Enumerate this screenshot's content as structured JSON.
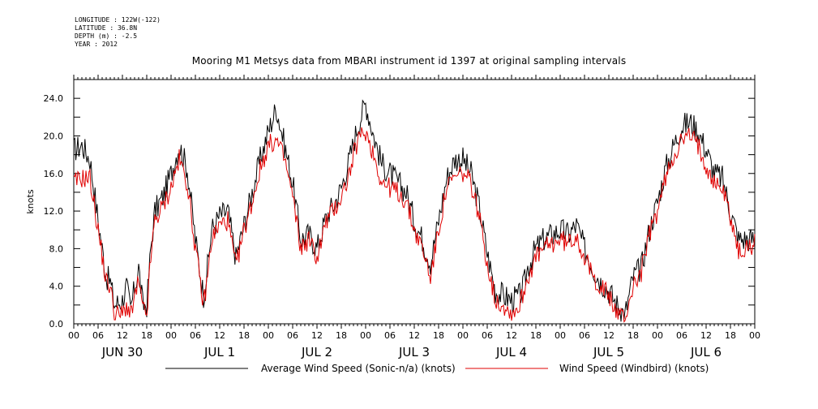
{
  "metadata": [
    "LONGITUDE : 122W(-122)",
    "LATITUDE : 36.8N",
    "DEPTH (m) : -2.5",
    "YEAR : 2012"
  ],
  "title": "Mooring M1 Metsys data from MBARI instrument id 1397 at original sampling intervals",
  "colors": {
    "series1": "#000000",
    "series2": "#e00000"
  },
  "chart_data": {
    "type": "line",
    "title": "Mooring M1 Metsys data from MBARI instrument id 1397 at original sampling intervals",
    "xlabel": "",
    "ylabel": "knots",
    "ylim": [
      0,
      26
    ],
    "y_ticks": [
      "0.0",
      "4.0",
      "8.0",
      "12.0",
      "16.0",
      "20.0",
      "24.0"
    ],
    "x_hour_ticks": [
      "00",
      "06",
      "12",
      "18",
      "00",
      "06",
      "12",
      "18",
      "00",
      "06",
      "12",
      "18",
      "00",
      "06",
      "12",
      "18",
      "00",
      "06",
      "12",
      "18",
      "00",
      "06",
      "12",
      "18",
      "00",
      "06",
      "12",
      "18",
      "00"
    ],
    "day_labels": [
      "JUN 30",
      "JUL  1",
      "JUL  2",
      "JUL  3",
      "JUL  4",
      "JUL  5",
      "JUL  6"
    ],
    "x_unit": "hours from 2012-06-30 00:00",
    "xlim": [
      0,
      168
    ],
    "legend_placement": "bottom",
    "series": [
      {
        "name": "Average Wind Speed (Sonic-n/a) (knots)",
        "color": "#000000",
        "x": [
          0,
          2,
          4,
          6,
          8,
          9,
          10,
          12,
          13,
          14,
          16,
          17,
          18,
          19,
          20,
          22,
          24,
          26,
          28,
          30,
          32,
          33,
          34,
          36,
          38,
          40,
          42,
          44,
          46,
          48,
          50,
          52,
          54,
          56,
          58,
          60,
          62,
          63,
          64,
          66,
          68,
          70,
          72,
          74,
          76,
          78,
          80,
          82,
          84,
          86,
          88,
          90,
          92,
          94,
          96,
          98,
          100,
          102,
          104,
          106,
          108,
          110,
          111,
          112,
          114,
          116,
          118,
          120,
          122,
          124,
          126,
          128,
          130,
          132,
          134,
          136,
          138,
          140,
          142,
          144,
          146,
          148,
          150,
          152,
          154,
          156,
          158,
          160,
          162,
          164,
          166,
          168
        ],
        "y": [
          18.5,
          19.0,
          17.5,
          11.0,
          5.0,
          4.5,
          2.0,
          2.5,
          4.0,
          1.5,
          6.0,
          2.0,
          2.0,
          8.0,
          12.0,
          13.5,
          16.0,
          19.0,
          16.5,
          9.0,
          3.0,
          6.0,
          10.0,
          11.5,
          12.0,
          7.0,
          10.5,
          14.0,
          17.5,
          20.5,
          23.0,
          19.0,
          15.0,
          9.0,
          9.5,
          8.0,
          11.0,
          12.0,
          12.5,
          14.5,
          17.5,
          21.0,
          23.5,
          20.0,
          17.0,
          16.0,
          15.0,
          14.0,
          11.0,
          9.0,
          6.5,
          11.0,
          15.5,
          17.5,
          17.5,
          16.0,
          12.5,
          7.5,
          3.5,
          3.0,
          2.5,
          3.0,
          4.0,
          6.0,
          8.0,
          9.0,
          9.5,
          10.0,
          9.5,
          10.5,
          8.0,
          6.0,
          4.5,
          3.5,
          2.0,
          1.0,
          5.0,
          6.0,
          10.0,
          13.0,
          16.5,
          19.0,
          21.0,
          21.5,
          20.5,
          18.5,
          16.0,
          15.5,
          12.0,
          9.0,
          9.0,
          9.0
        ]
      },
      {
        "name": "Wind Speed (Windbird) (knots)",
        "color": "#e00000",
        "x": [
          0,
          2,
          4,
          6,
          8,
          9,
          10,
          12,
          13,
          14,
          16,
          17,
          18,
          19,
          20,
          22,
          24,
          26,
          28,
          30,
          32,
          33,
          34,
          36,
          38,
          40,
          42,
          44,
          46,
          48,
          50,
          52,
          54,
          56,
          58,
          60,
          62,
          63,
          64,
          66,
          68,
          70,
          72,
          74,
          76,
          78,
          80,
          82,
          84,
          86,
          88,
          90,
          92,
          94,
          96,
          98,
          100,
          102,
          104,
          106,
          108,
          110,
          111,
          112,
          114,
          116,
          118,
          120,
          122,
          124,
          126,
          128,
          130,
          132,
          134,
          136,
          138,
          140,
          142,
          144,
          146,
          148,
          150,
          152,
          154,
          156,
          158,
          160,
          162,
          164,
          166,
          168
        ],
        "y": [
          15.0,
          15.5,
          15.5,
          10.0,
          4.5,
          4.0,
          1.0,
          1.0,
          2.0,
          0.8,
          4.5,
          1.5,
          1.0,
          7.0,
          11.0,
          12.5,
          14.5,
          17.5,
          15.0,
          8.0,
          2.0,
          5.0,
          9.0,
          10.5,
          11.0,
          6.0,
          10.0,
          13.0,
          16.5,
          19.0,
          19.5,
          17.5,
          13.5,
          8.0,
          9.0,
          7.0,
          10.5,
          11.5,
          12.0,
          13.5,
          16.0,
          19.5,
          20.5,
          18.0,
          15.0,
          14.5,
          14.0,
          13.0,
          10.0,
          8.0,
          5.0,
          10.0,
          14.5,
          15.5,
          16.0,
          15.0,
          11.5,
          6.5,
          2.5,
          2.0,
          1.0,
          2.0,
          3.5,
          5.0,
          7.0,
          8.0,
          8.5,
          9.0,
          8.5,
          9.5,
          7.0,
          5.0,
          4.0,
          3.0,
          1.0,
          0.5,
          4.0,
          5.5,
          9.5,
          12.0,
          15.5,
          18.0,
          19.5,
          20.0,
          19.0,
          17.0,
          15.0,
          14.5,
          11.5,
          7.5,
          8.0,
          8.5
        ]
      }
    ]
  }
}
